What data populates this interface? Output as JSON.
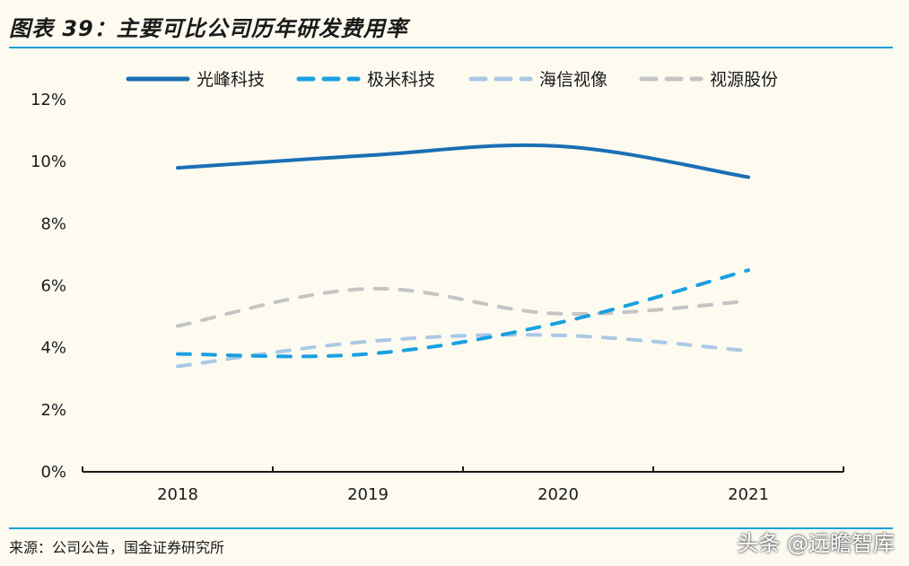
{
  "header": {
    "title": "图表 39：主要可比公司历年研发费用率"
  },
  "footer": {
    "source": "来源：公司公告，国金证券研究所",
    "watermark": "头条 @远瞻智库"
  },
  "chart_data": {
    "type": "line",
    "title": "图表 39：主要可比公司历年研发费用率",
    "xlabel": "",
    "ylabel": "",
    "categories": [
      "2018",
      "2019",
      "2020",
      "2021"
    ],
    "ylim": [
      0,
      12
    ],
    "yticks": [
      0,
      2,
      4,
      6,
      8,
      10,
      12
    ],
    "ytick_labels": [
      "0%",
      "2%",
      "4%",
      "6%",
      "8%",
      "10%",
      "12%"
    ],
    "grid": false,
    "legend_position": "top",
    "smooth": true,
    "series": [
      {
        "name": "光峰科技",
        "values": [
          9.8,
          10.2,
          10.5,
          9.5
        ],
        "color": "#1a6fb5",
        "style": "solid"
      },
      {
        "name": "极米科技",
        "values": [
          3.8,
          3.8,
          4.8,
          6.5
        ],
        "color": "#1aa0e0",
        "style": "dashed"
      },
      {
        "name": "海信视像",
        "values": [
          3.4,
          4.2,
          4.4,
          3.9
        ],
        "color": "#a9c8e6",
        "style": "dashed"
      },
      {
        "name": "视源股份",
        "values": [
          4.7,
          5.9,
          5.1,
          5.5
        ],
        "color": "#c4c4c4",
        "style": "dashed"
      }
    ]
  }
}
